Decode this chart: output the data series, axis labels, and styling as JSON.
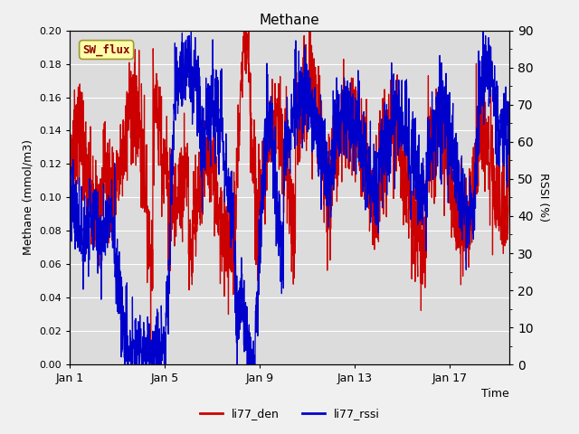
{
  "title": "Methane",
  "xlabel": "Time",
  "ylabel_left": "Methane (mmol/m3)",
  "ylabel_right": "RSSI (%)",
  "annotation": "SW_flux",
  "xlim_days": [
    0,
    18.5
  ],
  "ylim_left": [
    0.0,
    0.2
  ],
  "ylim_right": [
    0,
    90
  ],
  "yticks_left": [
    0.0,
    0.02,
    0.04,
    0.06,
    0.08,
    0.1,
    0.12,
    0.14,
    0.16,
    0.18,
    0.2
  ],
  "yticks_right": [
    0,
    10,
    20,
    30,
    40,
    50,
    60,
    70,
    80,
    90
  ],
  "xtick_labels": [
    "Jan 1",
    "Jan 5",
    "Jan 9",
    "Jan 13",
    "Jan 17"
  ],
  "xtick_positions": [
    0,
    4,
    8,
    12,
    16
  ],
  "color_den": "#cc0000",
  "color_rssi": "#0000cc",
  "legend_labels": [
    "li77_den",
    "li77_rssi"
  ],
  "bg_outer": "#e8e8e8",
  "bg_plot": "#dcdcdc",
  "grid_color": "#ffffff",
  "annotation_bg": "#ffffaa",
  "annotation_border": "#999933",
  "lw": 0.9
}
